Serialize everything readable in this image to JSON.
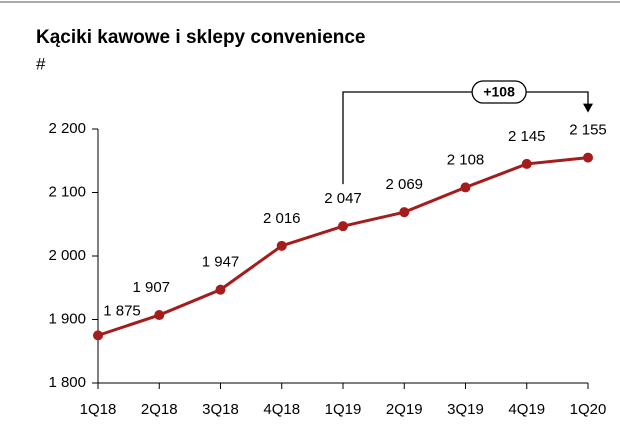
{
  "chart_data": {
    "type": "line",
    "title": "Kąciki kawowe i sklepy convenience",
    "subtitle": "#",
    "categories": [
      "1Q18",
      "2Q18",
      "3Q18",
      "4Q18",
      "1Q19",
      "2Q19",
      "3Q19",
      "4Q19",
      "1Q20"
    ],
    "values": [
      1875,
      1907,
      1947,
      2016,
      2047,
      2069,
      2108,
      2145,
      2155
    ],
    "value_labels": [
      "1 875",
      "1 907",
      "1 947",
      "2 016",
      "2 047",
      "2 069",
      "2 108",
      "2 145",
      "2 155"
    ],
    "color": "#a51c1c",
    "ylim": [
      1800,
      2200
    ],
    "yticks": [
      {
        "value": 1800,
        "label": "1 800"
      },
      {
        "value": 1900,
        "label": "1 900"
      },
      {
        "value": 2000,
        "label": "2 000"
      },
      {
        "value": 2100,
        "label": "2 100"
      },
      {
        "value": 2200,
        "label": "2 200"
      }
    ],
    "annotation": "+108"
  }
}
